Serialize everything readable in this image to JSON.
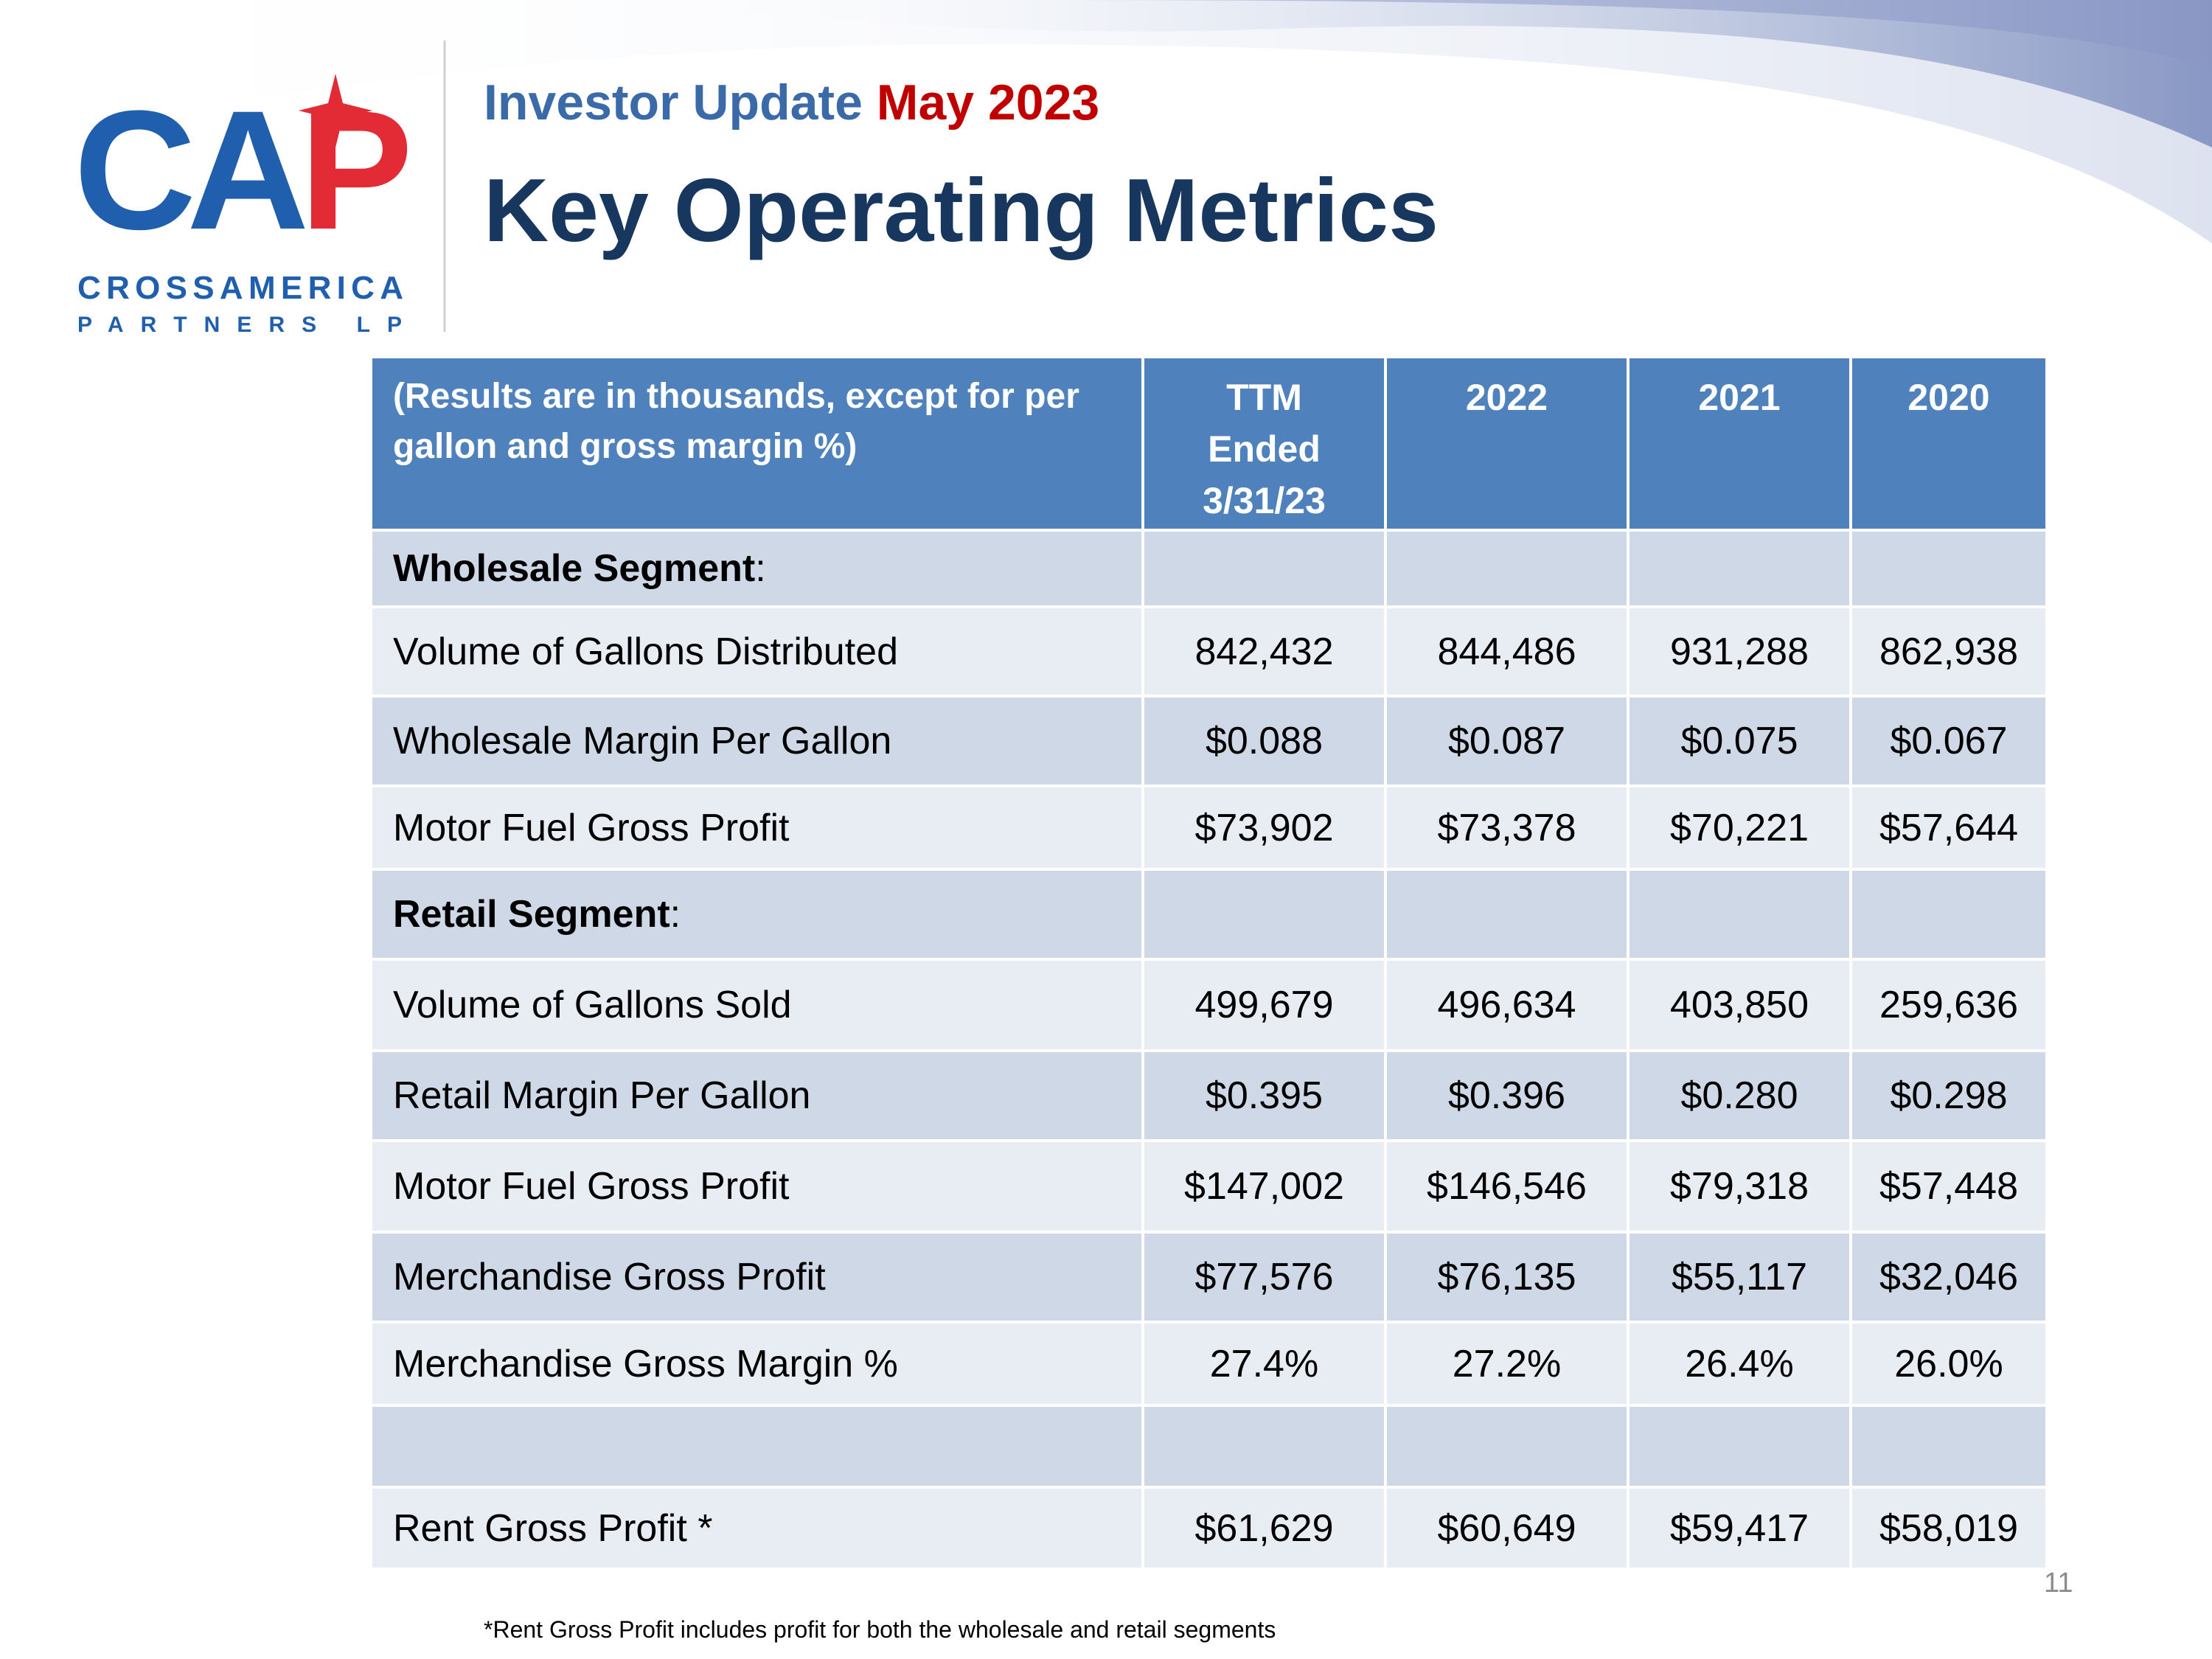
{
  "header": {
    "subtitle": "Investor Update",
    "subtitle_highlight": "May 2023",
    "title": "Key Operating Metrics"
  },
  "logo": {
    "mark": [
      "CA",
      "P"
    ],
    "name": "CROSSAMERICA",
    "suffix": "PARTNERS LP"
  },
  "table": {
    "columns": [
      "(Results are in thousands, except for per gallon and gross margin %)",
      "TTM Ended 3/31/23",
      "2022",
      "2021",
      "2020"
    ],
    "rows": [
      {
        "label": "Wholesale Segment",
        "suffix": ":"
      },
      {
        "label": "Volume of Gallons Distributed",
        "values": [
          "842,432",
          "844,486",
          "931,288",
          "862,938"
        ]
      },
      {
        "label": "Wholesale Margin Per Gallon",
        "values": [
          "$0.088",
          "$0.087",
          "$0.075",
          "$0.067"
        ]
      },
      {
        "label": "Motor Fuel Gross Profit",
        "values": [
          "$73,902",
          "$73,378",
          "$70,221",
          "$57,644"
        ]
      },
      {
        "label": "Retail Segment",
        "suffix": ":"
      },
      {
        "label": "Volume of Gallons Sold",
        "values": [
          "499,679",
          "496,634",
          "403,850",
          "259,636"
        ]
      },
      {
        "label": "Retail Margin Per Gallon",
        "values": [
          "$0.395",
          "$0.396",
          "$0.280",
          "$0.298"
        ]
      },
      {
        "label": "Motor Fuel Gross Profit",
        "values": [
          "$147,002",
          "$146,546",
          "$79,318",
          "$57,448"
        ]
      },
      {
        "label": "Merchandise Gross Profit",
        "values": [
          "$77,576",
          "$76,135",
          "$55,117",
          "$32,046"
        ]
      },
      {
        "label": "Merchandise Gross Margin %",
        "values": [
          "27.4%",
          "27.2%",
          "26.4%",
          "26.0%"
        ]
      },
      {
        "label": "Rent Gross Profit *",
        "values": [
          "$61,629",
          "$60,649",
          "$59,417",
          "$58,019"
        ]
      }
    ]
  },
  "footnote": "*Rent Gross Profit includes profit for both the wholesale and retail segments",
  "page_number": "11"
}
